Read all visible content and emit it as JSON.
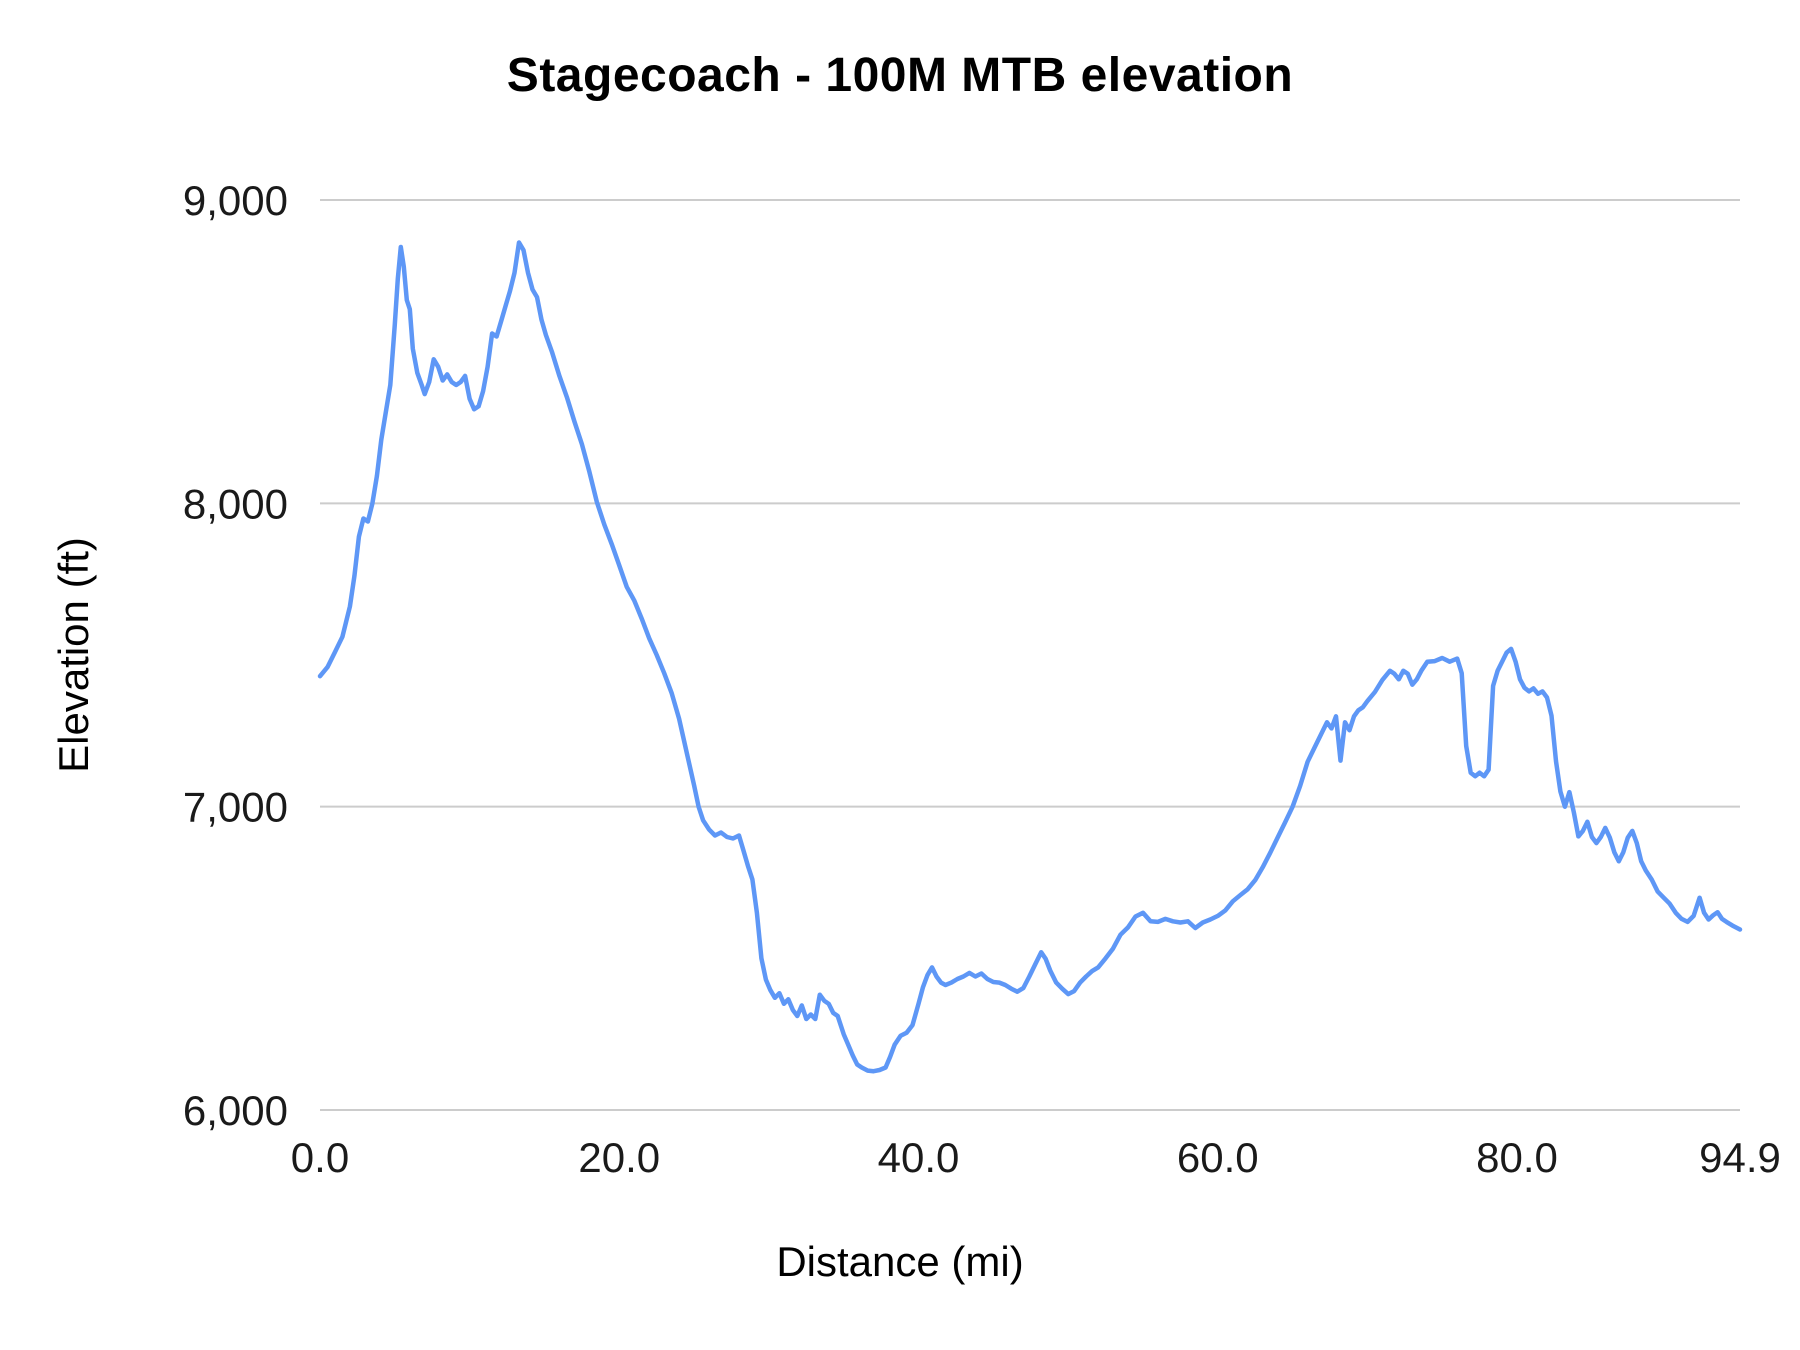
{
  "chart_data": {
    "type": "line",
    "title": "Stagecoach - 100M MTB elevation",
    "xlabel": "Distance (mi)",
    "ylabel": "Elevation (ft)",
    "xlim": [
      0,
      94.9
    ],
    "ylim": [
      6000,
      9000
    ],
    "grid": "horizontal-only",
    "legend": "none",
    "line_color": "#5e97f6",
    "grid_color": "#cccccc",
    "x_ticks": [
      {
        "value": 0,
        "label": "0.0"
      },
      {
        "value": 20,
        "label": "20.0"
      },
      {
        "value": 40,
        "label": "40.0"
      },
      {
        "value": 60,
        "label": "60.0"
      },
      {
        "value": 80,
        "label": "80.0"
      },
      {
        "value": 94.9,
        "label": "94.9"
      }
    ],
    "y_ticks": [
      {
        "value": 6000,
        "label": "6,000"
      },
      {
        "value": 7000,
        "label": "7,000"
      },
      {
        "value": 8000,
        "label": "8,000"
      },
      {
        "value": 9000,
        "label": "9,000"
      }
    ],
    "series": [
      {
        "name": "Elevation (ft)",
        "points": [
          [
            0,
            7430
          ],
          [
            0.5,
            7460
          ],
          [
            1,
            7510
          ],
          [
            1.5,
            7560
          ],
          [
            2,
            7660
          ],
          [
            2.3,
            7760
          ],
          [
            2.6,
            7890
          ],
          [
            2.9,
            7950
          ],
          [
            3.2,
            7940
          ],
          [
            3.5,
            8000
          ],
          [
            3.8,
            8090
          ],
          [
            4.1,
            8210
          ],
          [
            4.4,
            8300
          ],
          [
            4.7,
            8390
          ],
          [
            5,
            8590
          ],
          [
            5.2,
            8740
          ],
          [
            5.4,
            8845
          ],
          [
            5.6,
            8780
          ],
          [
            5.8,
            8670
          ],
          [
            6,
            8640
          ],
          [
            6.2,
            8510
          ],
          [
            6.5,
            8430
          ],
          [
            6.8,
            8390
          ],
          [
            7,
            8360
          ],
          [
            7.3,
            8400
          ],
          [
            7.6,
            8475
          ],
          [
            7.9,
            8450
          ],
          [
            8.2,
            8405
          ],
          [
            8.5,
            8425
          ],
          [
            8.8,
            8400
          ],
          [
            9.1,
            8390
          ],
          [
            9.4,
            8400
          ],
          [
            9.7,
            8420
          ],
          [
            10,
            8345
          ],
          [
            10.3,
            8310
          ],
          [
            10.6,
            8320
          ],
          [
            10.9,
            8370
          ],
          [
            11.2,
            8450
          ],
          [
            11.5,
            8560
          ],
          [
            11.8,
            8550
          ],
          [
            12.1,
            8600
          ],
          [
            12.4,
            8650
          ],
          [
            12.7,
            8700
          ],
          [
            13,
            8760
          ],
          [
            13.3,
            8860
          ],
          [
            13.6,
            8835
          ],
          [
            13.9,
            8760
          ],
          [
            14.2,
            8705
          ],
          [
            14.5,
            8680
          ],
          [
            14.8,
            8605
          ],
          [
            15.1,
            8555
          ],
          [
            15.5,
            8500
          ],
          [
            16,
            8420
          ],
          [
            16.5,
            8350
          ],
          [
            17,
            8270
          ],
          [
            17.5,
            8195
          ],
          [
            18,
            8105
          ],
          [
            18.5,
            8005
          ],
          [
            19,
            7930
          ],
          [
            19.5,
            7865
          ],
          [
            20,
            7795
          ],
          [
            20.5,
            7725
          ],
          [
            21,
            7680
          ],
          [
            21.5,
            7620
          ],
          [
            22,
            7555
          ],
          [
            22.5,
            7500
          ],
          [
            23,
            7440
          ],
          [
            23.5,
            7375
          ],
          [
            24,
            7290
          ],
          [
            24.5,
            7180
          ],
          [
            25,
            7070
          ],
          [
            25.3,
            7000
          ],
          [
            25.6,
            6955
          ],
          [
            26,
            6925
          ],
          [
            26.4,
            6905
          ],
          [
            26.8,
            6915
          ],
          [
            27.2,
            6900
          ],
          [
            27.6,
            6895
          ],
          [
            28,
            6905
          ],
          [
            28.3,
            6855
          ],
          [
            28.6,
            6805
          ],
          [
            28.9,
            6760
          ],
          [
            29.2,
            6650
          ],
          [
            29.5,
            6500
          ],
          [
            29.8,
            6430
          ],
          [
            30.1,
            6395
          ],
          [
            30.4,
            6370
          ],
          [
            30.7,
            6385
          ],
          [
            31,
            6350
          ],
          [
            31.3,
            6365
          ],
          [
            31.6,
            6330
          ],
          [
            31.9,
            6310
          ],
          [
            32.2,
            6345
          ],
          [
            32.5,
            6300
          ],
          [
            32.8,
            6315
          ],
          [
            33.1,
            6300
          ],
          [
            33.4,
            6380
          ],
          [
            33.7,
            6360
          ],
          [
            34,
            6350
          ],
          [
            34.3,
            6320
          ],
          [
            34.6,
            6310
          ],
          [
            35,
            6250
          ],
          [
            35.3,
            6215
          ],
          [
            35.6,
            6180
          ],
          [
            35.9,
            6150
          ],
          [
            36.2,
            6140
          ],
          [
            36.6,
            6130
          ],
          [
            37,
            6128
          ],
          [
            37.4,
            6132
          ],
          [
            37.8,
            6140
          ],
          [
            38.1,
            6175
          ],
          [
            38.4,
            6215
          ],
          [
            38.8,
            6245
          ],
          [
            39.2,
            6255
          ],
          [
            39.6,
            6280
          ],
          [
            40,
            6350
          ],
          [
            40.3,
            6405
          ],
          [
            40.6,
            6445
          ],
          [
            40.9,
            6470
          ],
          [
            41.2,
            6440
          ],
          [
            41.5,
            6420
          ],
          [
            41.8,
            6412
          ],
          [
            42.2,
            6420
          ],
          [
            42.6,
            6432
          ],
          [
            43,
            6440
          ],
          [
            43.4,
            6452
          ],
          [
            43.8,
            6440
          ],
          [
            44.2,
            6450
          ],
          [
            44.6,
            6432
          ],
          [
            45,
            6422
          ],
          [
            45.4,
            6420
          ],
          [
            45.8,
            6412
          ],
          [
            46.2,
            6400
          ],
          [
            46.6,
            6390
          ],
          [
            47,
            6402
          ],
          [
            47.4,
            6440
          ],
          [
            47.8,
            6480
          ],
          [
            48.2,
            6520
          ],
          [
            48.5,
            6498
          ],
          [
            48.8,
            6460
          ],
          [
            49.2,
            6420
          ],
          [
            49.6,
            6400
          ],
          [
            50,
            6382
          ],
          [
            50.4,
            6392
          ],
          [
            50.8,
            6420
          ],
          [
            51.2,
            6440
          ],
          [
            51.6,
            6458
          ],
          [
            52,
            6470
          ],
          [
            52.5,
            6500
          ],
          [
            53,
            6532
          ],
          [
            53.5,
            6578
          ],
          [
            54,
            6602
          ],
          [
            54.5,
            6638
          ],
          [
            55,
            6650
          ],
          [
            55.5,
            6622
          ],
          [
            56,
            6620
          ],
          [
            56.5,
            6630
          ],
          [
            57,
            6622
          ],
          [
            57.5,
            6618
          ],
          [
            58,
            6622
          ],
          [
            58.5,
            6600
          ],
          [
            59,
            6618
          ],
          [
            59.5,
            6628
          ],
          [
            60,
            6640
          ],
          [
            60.5,
            6658
          ],
          [
            61,
            6688
          ],
          [
            61.5,
            6708
          ],
          [
            62,
            6728
          ],
          [
            62.5,
            6758
          ],
          [
            63,
            6800
          ],
          [
            63.5,
            6848
          ],
          [
            64,
            6898
          ],
          [
            64.5,
            6948
          ],
          [
            65,
            7000
          ],
          [
            65.5,
            7068
          ],
          [
            66,
            7148
          ],
          [
            66.5,
            7198
          ],
          [
            67,
            7248
          ],
          [
            67.3,
            7278
          ],
          [
            67.6,
            7258
          ],
          [
            67.9,
            7298
          ],
          [
            68.2,
            7152
          ],
          [
            68.5,
            7278
          ],
          [
            68.8,
            7252
          ],
          [
            69.1,
            7298
          ],
          [
            69.4,
            7318
          ],
          [
            69.7,
            7328
          ],
          [
            70,
            7348
          ],
          [
            70.5,
            7378
          ],
          [
            71,
            7418
          ],
          [
            71.5,
            7448
          ],
          [
            71.8,
            7438
          ],
          [
            72.1,
            7420
          ],
          [
            72.4,
            7448
          ],
          [
            72.7,
            7438
          ],
          [
            73,
            7402
          ],
          [
            73.3,
            7420
          ],
          [
            73.6,
            7448
          ],
          [
            74,
            7478
          ],
          [
            74.5,
            7480
          ],
          [
            75,
            7490
          ],
          [
            75.5,
            7478
          ],
          [
            76,
            7488
          ],
          [
            76.3,
            7440
          ],
          [
            76.6,
            7200
          ],
          [
            76.9,
            7112
          ],
          [
            77.2,
            7100
          ],
          [
            77.5,
            7112
          ],
          [
            77.8,
            7100
          ],
          [
            78.1,
            7122
          ],
          [
            78.4,
            7398
          ],
          [
            78.7,
            7448
          ],
          [
            79,
            7478
          ],
          [
            79.3,
            7508
          ],
          [
            79.6,
            7520
          ],
          [
            79.9,
            7478
          ],
          [
            80.2,
            7420
          ],
          [
            80.5,
            7392
          ],
          [
            80.8,
            7380
          ],
          [
            81.1,
            7390
          ],
          [
            81.4,
            7372
          ],
          [
            81.7,
            7380
          ],
          [
            82,
            7360
          ],
          [
            82.3,
            7300
          ],
          [
            82.6,
            7150
          ],
          [
            82.9,
            7050
          ],
          [
            83.2,
            7000
          ],
          [
            83.5,
            7048
          ],
          [
            83.8,
            6980
          ],
          [
            84.1,
            6902
          ],
          [
            84.4,
            6920
          ],
          [
            84.7,
            6950
          ],
          [
            85,
            6900
          ],
          [
            85.3,
            6880
          ],
          [
            85.6,
            6900
          ],
          [
            85.9,
            6930
          ],
          [
            86.2,
            6898
          ],
          [
            86.5,
            6850
          ],
          [
            86.8,
            6820
          ],
          [
            87.1,
            6850
          ],
          [
            87.4,
            6898
          ],
          [
            87.7,
            6920
          ],
          [
            88,
            6880
          ],
          [
            88.3,
            6820
          ],
          [
            88.6,
            6790
          ],
          [
            89,
            6760
          ],
          [
            89.4,
            6720
          ],
          [
            89.8,
            6700
          ],
          [
            90.2,
            6680
          ],
          [
            90.6,
            6650
          ],
          [
            91,
            6630
          ],
          [
            91.4,
            6620
          ],
          [
            91.8,
            6640
          ],
          [
            92.2,
            6700
          ],
          [
            92.5,
            6650
          ],
          [
            92.8,
            6628
          ],
          [
            93.1,
            6642
          ],
          [
            93.4,
            6652
          ],
          [
            93.7,
            6630
          ],
          [
            94,
            6620
          ],
          [
            94.4,
            6608
          ],
          [
            94.9,
            6595
          ]
        ]
      }
    ]
  }
}
